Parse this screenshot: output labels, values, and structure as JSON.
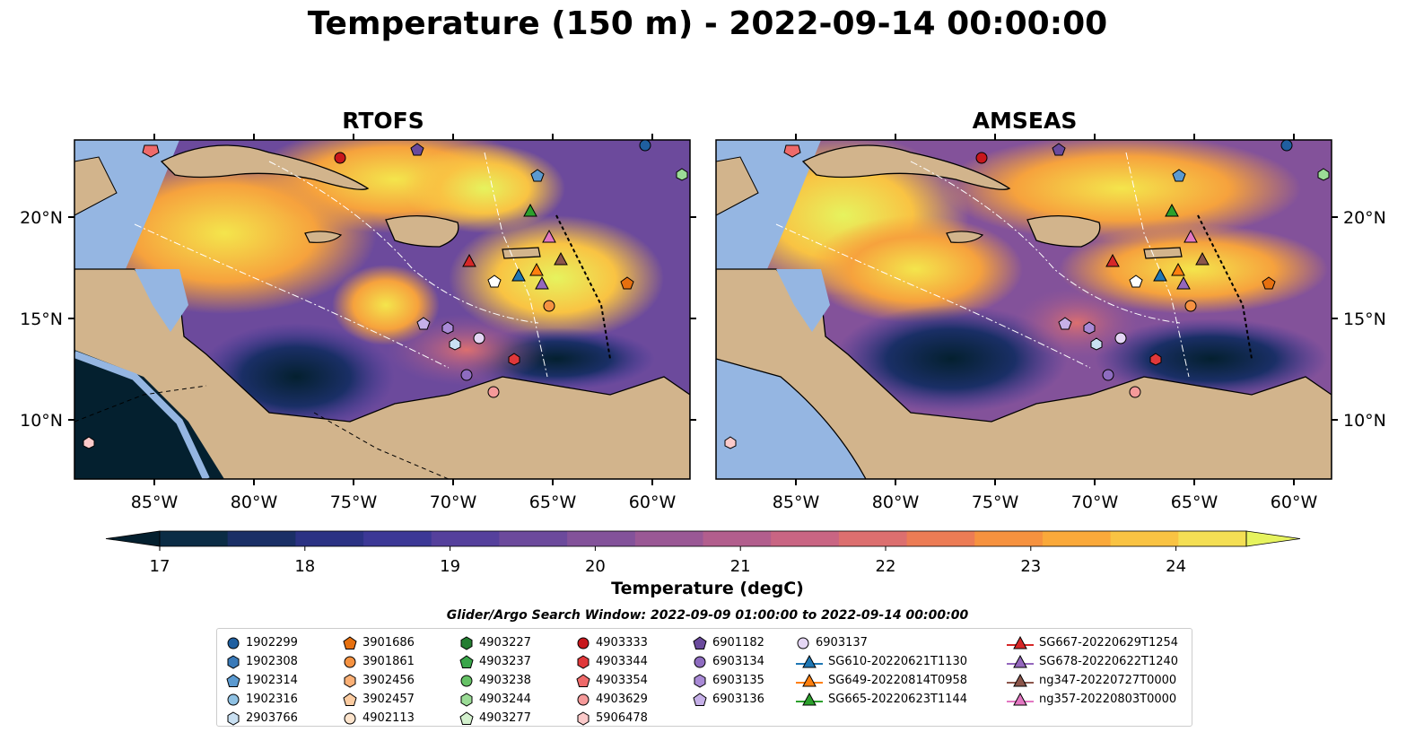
{
  "title": "Temperature (150 m) - 2022-09-14 00:00:00",
  "panels": [
    {
      "title": "RTOFS"
    },
    {
      "title": "AMSEAS"
    }
  ],
  "axes": {
    "lon_ticks": [
      "85°W",
      "80°W",
      "75°W",
      "70°W",
      "65°W",
      "60°W"
    ],
    "lat_ticks": [
      "20°N",
      "15°N",
      "10°N"
    ]
  },
  "colorbar": {
    "label": "Temperature (degC)",
    "ticks": [
      "17",
      "18",
      "19",
      "20",
      "21",
      "22",
      "23",
      "24"
    ],
    "colors": [
      "#04202f",
      "#0b2c45",
      "#1a2f66",
      "#2b3284",
      "#3c3896",
      "#55409c",
      "#6c4a9c",
      "#83529a",
      "#9a5895",
      "#b25e8d",
      "#c96583",
      "#dc6f6f",
      "#ec7c55",
      "#f6923f",
      "#faa93a",
      "#f9c343",
      "#f4df54",
      "#e6f35e"
    ]
  },
  "legend": {
    "search_window": "Glider/Argo Search Window: 2022-09-09 01:00:00 to 2022-09-14 00:00:00",
    "columns": [
      [
        {
          "label": "1902299",
          "marker": "circle",
          "color": "#1f5fa0"
        },
        {
          "label": "1902308",
          "marker": "hexagon",
          "color": "#3a7ab8"
        },
        {
          "label": "1902314",
          "marker": "pentagon",
          "color": "#5b9ad0"
        },
        {
          "label": "1902316",
          "marker": "circle",
          "color": "#8fc1e3"
        },
        {
          "label": "2903766",
          "marker": "hexagon",
          "color": "#c9e0f2"
        }
      ],
      [
        {
          "label": "3901686",
          "marker": "pentagon",
          "color": "#e6700f"
        },
        {
          "label": "3901861",
          "marker": "circle",
          "color": "#f59241"
        },
        {
          "label": "3902456",
          "marker": "hexagon",
          "color": "#fbb076"
        },
        {
          "label": "3902457",
          "marker": "pentagon",
          "color": "#fccca1"
        },
        {
          "label": "4902113",
          "marker": "circle",
          "color": "#fde4cc"
        }
      ],
      [
        {
          "label": "4903227",
          "marker": "hexagon",
          "color": "#237d31"
        },
        {
          "label": "4903237",
          "marker": "pentagon",
          "color": "#3aa64a"
        },
        {
          "label": "4903238",
          "marker": "circle",
          "color": "#66c266"
        },
        {
          "label": "4903244",
          "marker": "hexagon",
          "color": "#9bdc96"
        },
        {
          "label": "4903277",
          "marker": "pentagon",
          "color": "#d3f0cd"
        }
      ],
      [
        {
          "label": "4903333",
          "marker": "circle",
          "color": "#c8171c"
        },
        {
          "label": "4903344",
          "marker": "hexagon",
          "color": "#e0383a"
        },
        {
          "label": "4903354",
          "marker": "pentagon",
          "color": "#ee6a6a"
        },
        {
          "label": "4903629",
          "marker": "circle",
          "color": "#f59a9a"
        },
        {
          "label": "5906478",
          "marker": "hexagon",
          "color": "#fbcaca"
        }
      ],
      [
        {
          "label": "6901182",
          "marker": "pentagon",
          "color": "#6a4a9c"
        },
        {
          "label": "6903134",
          "marker": "circle",
          "color": "#8e6cc0"
        },
        {
          "label": "6903135",
          "marker": "hexagon",
          "color": "#a98ad6"
        },
        {
          "label": "6903136",
          "marker": "pentagon",
          "color": "#c6b0e8"
        }
      ],
      [
        {
          "label": "6903137",
          "marker": "circle",
          "color": "#e4d6f4"
        },
        {
          "label": "SG610-20220621T1130",
          "marker": "triangle-line",
          "color": "#1f77b4"
        },
        {
          "label": "SG649-20220814T0958",
          "marker": "triangle-line",
          "color": "#ff7f0e"
        },
        {
          "label": "SG665-20220623T1144",
          "marker": "triangle-line",
          "color": "#2ca02c"
        }
      ],
      [
        {
          "label": "SG667-20220629T1254",
          "marker": "triangle-line",
          "color": "#d62728"
        },
        {
          "label": "SG678-20220622T1240",
          "marker": "triangle-line",
          "color": "#9467bd"
        },
        {
          "label": "ng347-20220727T0000",
          "marker": "triangle-line",
          "color": "#8c564b"
        },
        {
          "label": "ng357-20220803T0000",
          "marker": "triangle-line",
          "color": "#e377c2"
        }
      ]
    ]
  },
  "colors": {
    "land": "#d2b48c",
    "shallow": "#95b6e2",
    "deep": "#04202f",
    "coast": "#000000"
  }
}
